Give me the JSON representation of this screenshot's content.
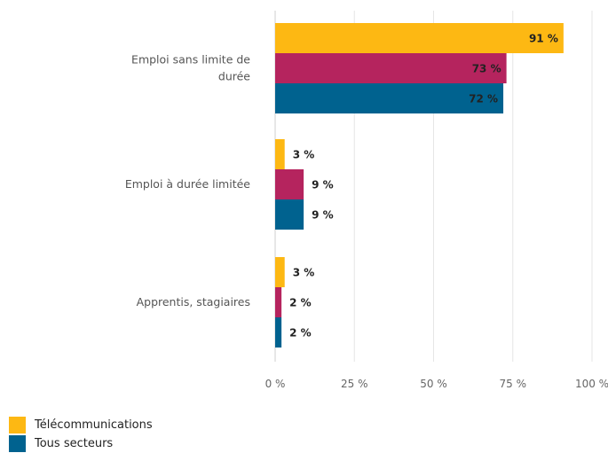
{
  "chart_data": {
    "type": "bar",
    "orientation": "horizontal",
    "categories": [
      [
        "Emploi sans limite de",
        "durée"
      ],
      [
        "Emploi à durée limitée"
      ],
      [
        "Apprentis, stagiaires"
      ]
    ],
    "series": [
      {
        "name": "Télécommunications",
        "color": "#FDB813",
        "values": [
          91,
          3,
          3
        ]
      },
      {
        "name": "",
        "color": "#B5245E",
        "values": [
          73,
          9,
          2
        ]
      },
      {
        "name": "Tous secteurs",
        "color": "#00628F",
        "values": [
          72,
          9,
          2
        ]
      }
    ],
    "value_suffix": " %",
    "xlim": [
      0,
      100
    ],
    "xticks": [
      0,
      25,
      50,
      75,
      100
    ],
    "xtick_labels": [
      "0 %",
      "25 %",
      "50 %",
      "75 %",
      "100 %"
    ],
    "grid": true,
    "legend_position": "bottom-left"
  },
  "legend": {
    "items": [
      {
        "label": "Télécommunications",
        "color": "#FDB813"
      },
      {
        "label": "Tous secteurs",
        "color": "#00628F"
      }
    ]
  }
}
